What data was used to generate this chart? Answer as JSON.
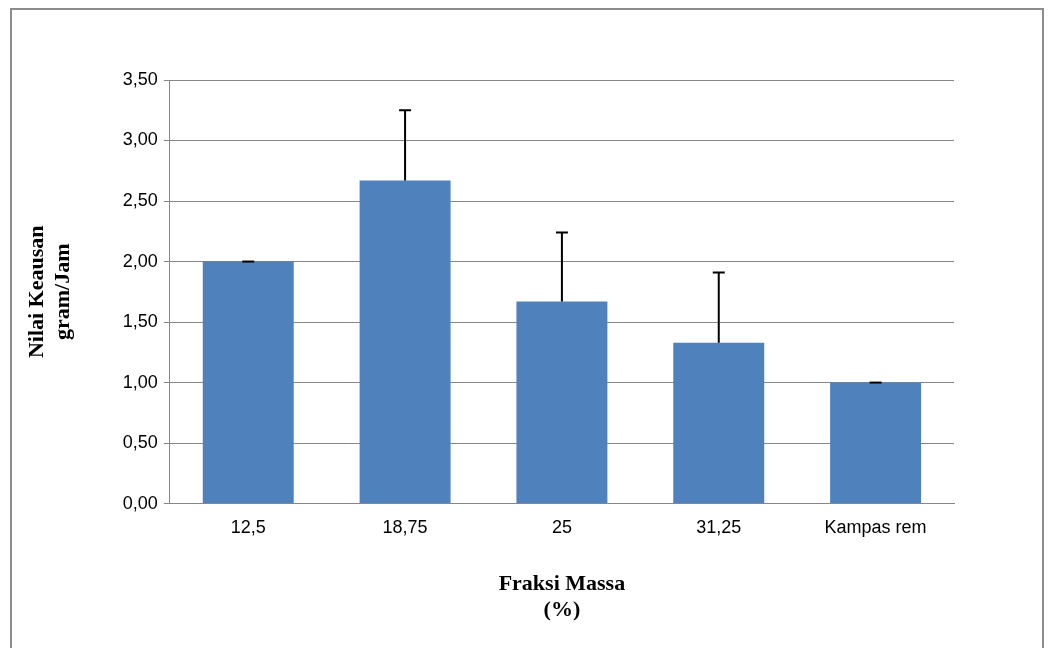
{
  "chart_data": {
    "type": "bar",
    "xlabel": "Fraksi Massa\n(%)",
    "ylabel": "Nilai Keausan\ngram/Jam",
    "categories": [
      "12,5",
      "18,75",
      "25",
      "31,25",
      "Kampas rem"
    ],
    "values": [
      2.0,
      2.67,
      1.67,
      1.33,
      1.0
    ],
    "errors": [
      [
        2.0,
        2.0
      ],
      [
        2.67,
        3.25
      ],
      [
        1.67,
        2.24
      ],
      [
        1.33,
        1.91
      ],
      [
        1.0,
        1.0
      ]
    ],
    "color": "#4f81bd",
    "ylim": [
      0,
      3.5
    ],
    "yticks": [
      {
        "value": 0,
        "label": "0,00"
      },
      {
        "value": 0.5,
        "label": "0,50"
      },
      {
        "value": 1,
        "label": "1,00"
      },
      {
        "value": 1.5,
        "label": "1,50"
      },
      {
        "value": 2,
        "label": "2,00"
      },
      {
        "value": 2.5,
        "label": "2,50"
      },
      {
        "value": 3,
        "label": "3,00"
      },
      {
        "value": 3.5,
        "label": "3,50"
      }
    ],
    "grid": "y",
    "legend": false
  }
}
